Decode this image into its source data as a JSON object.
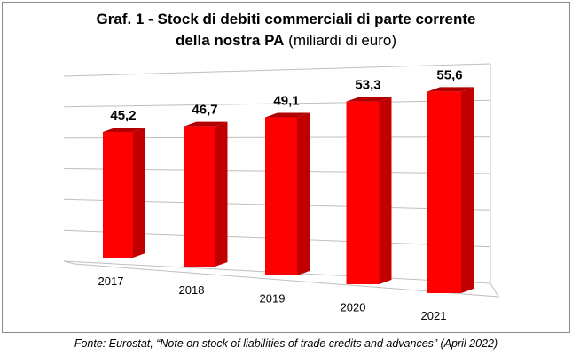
{
  "title": {
    "line1": "Graf. 1 - Stock di debiti commerciali di parte corrente",
    "line2_bold": "della nostra PA",
    "line2_normal": " (miliardi di euro)"
  },
  "source": "Fonte: Eurostat, “Note on stock of liabilities of trade credits and advances” (April 2022)",
  "colors": {
    "bar_front": "#ff0000",
    "bar_side": "#c00000",
    "bar_top": "#b00000",
    "grid": "#bfbfbf"
  },
  "chart_data": {
    "type": "bar",
    "title": "Graf. 1 - Stock di debiti commerciali di parte corrente della nostra PA (miliardi di euro)",
    "categories": [
      "2017",
      "2018",
      "2019",
      "2020",
      "2021"
    ],
    "values": [
      45.2,
      46.7,
      49.1,
      53.3,
      55.6
    ],
    "value_labels": [
      "45,2",
      "46,7",
      "49,1",
      "53,3",
      "55,6"
    ],
    "xlabel": "",
    "ylabel": "",
    "ylim": [
      0,
      60
    ],
    "grid": true,
    "legend": "none",
    "style": "3d-perspective"
  }
}
